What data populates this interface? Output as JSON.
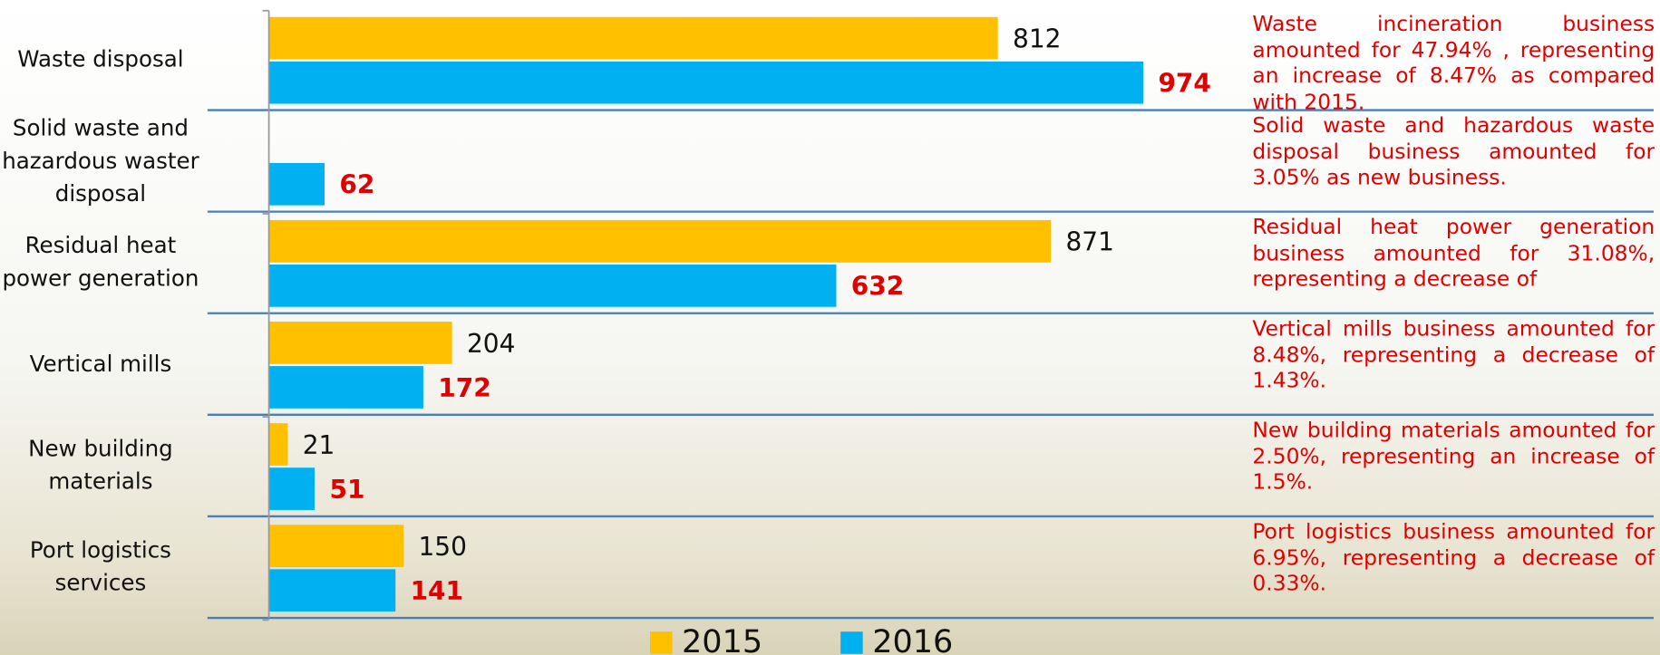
{
  "chart_data": {
    "type": "barh",
    "categories": [
      "Waste disposal",
      "Solid waste and hazardous waster disposal",
      "Residual heat power generation",
      "Vertical mills",
      "New building materials",
      "Port logistics services"
    ],
    "series": [
      {
        "name": "2015",
        "color": "#FFC000",
        "values": [
          812,
          null,
          871,
          204,
          21,
          150
        ]
      },
      {
        "name": "2016",
        "color": "#00B0F0",
        "values": [
          974,
          62,
          632,
          172,
          51,
          141
        ]
      }
    ],
    "xlim": [
      0,
      1000
    ],
    "annotations": [
      "Waste incineration business amounted for 47.94% , representing an increase of 8.47% as compared with 2015.",
      "Solid waste and hazardous waste disposal business amounted for 3.05% as new business.",
      "Residual heat power generation business amounted for 31.08%, representing a decrease of",
      "Vertical mills business amounted for 8.48%, representing a decrease of 1.43%.",
      "New building materials amounted for 2.50%, representing an increase of 1.5%.",
      "Port logistics business amounted for 6.95%, representing a decrease of 0.33%."
    ]
  }
}
